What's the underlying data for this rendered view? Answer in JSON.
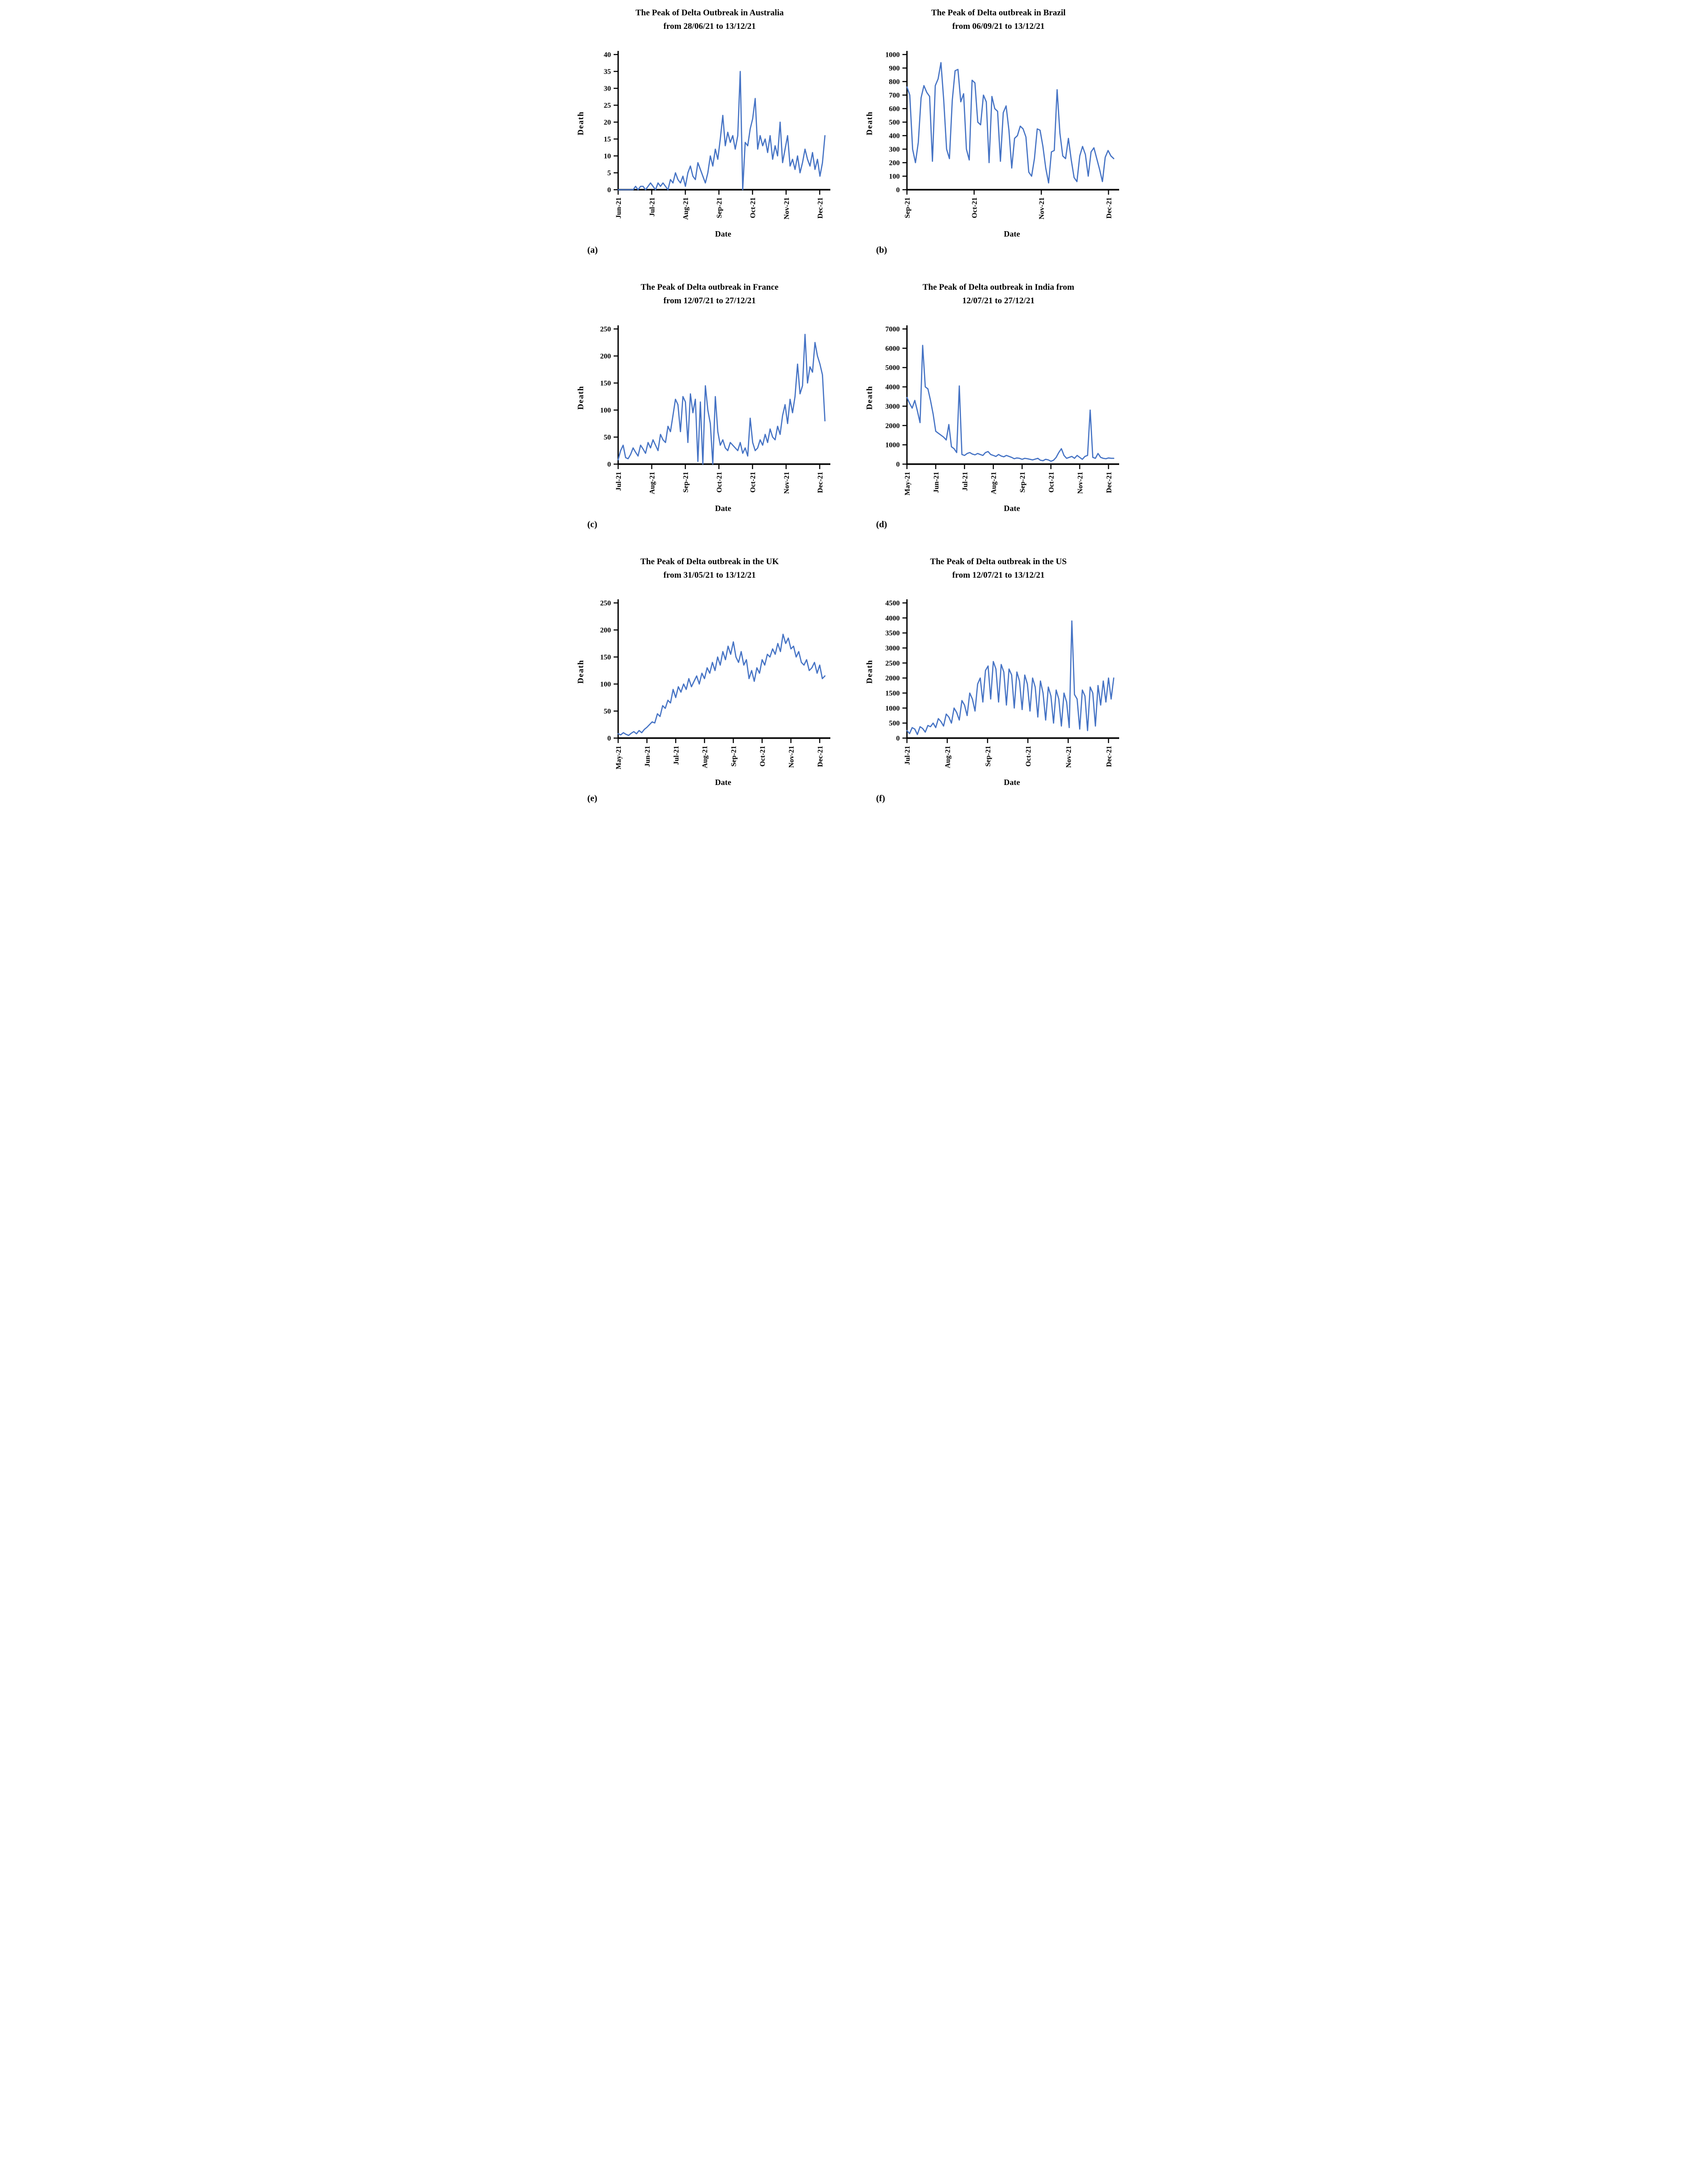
{
  "figure": {
    "description_visible_text_only": "Six line charts of daily Delta-outbreak deaths",
    "line_color": "#4472C4",
    "axis_color": "#000000"
  },
  "chart_data": [
    {
      "id": "australia",
      "caption": "(a)",
      "type": "line",
      "country": "Australia",
      "title": "The Peak of Delta Outbreak in Australia from 28/06/21 to 13/12/21",
      "title_lines": [
        "The Peak of Delta Outbreak in Australia",
        "from 28/06/21 to 13/12/21"
      ],
      "date_range": "28/06/21 to 13/12/21",
      "xlabel": "Date",
      "ylabel": "Death",
      "ylim": [
        0,
        40
      ],
      "yticks": [
        0,
        5,
        10,
        15,
        20,
        25,
        30,
        35,
        40
      ],
      "xticks": [
        "Jun-21",
        "Jul-21",
        "Aug-21",
        "Sep-21",
        "Oct-21",
        "Nov-21",
        "Dec-21"
      ],
      "line_color": "#4472C4",
      "values": [
        0,
        0,
        0,
        0,
        0,
        0,
        0,
        1,
        0,
        1,
        1,
        0,
        1,
        2,
        1,
        0,
        2,
        1,
        2,
        1,
        0,
        3,
        2,
        5,
        3,
        2,
        4,
        1,
        5,
        7,
        4,
        3,
        8,
        6,
        4,
        2,
        5,
        10,
        7,
        12,
        9,
        15,
        22,
        13,
        17,
        14,
        16,
        12,
        16,
        35,
        0,
        14,
        13,
        18,
        21,
        27,
        12,
        16,
        13,
        15,
        11,
        16,
        9,
        13,
        10,
        20,
        8,
        12,
        16,
        7,
        9,
        6,
        10,
        5,
        8,
        12,
        9,
        7,
        11,
        6,
        9,
        4,
        8,
        16
      ]
    },
    {
      "id": "brazil",
      "caption": "(b)",
      "type": "line",
      "country": "Brazil",
      "title": "The Peak of Delta outbreak in Brazil from 06/09/21 to 13/12/21",
      "title_lines": [
        "The Peak of Delta outbreak in Brazil",
        "from 06/09/21 to 13/12/21"
      ],
      "date_range": "06/09/21 to 13/12/21",
      "xlabel": "Date",
      "ylabel": "Death",
      "ylim": [
        0,
        1000
      ],
      "yticks": [
        0,
        100,
        200,
        300,
        400,
        500,
        600,
        700,
        800,
        900,
        1000
      ],
      "xticks": [
        "Sep-21",
        "Oct-21",
        "Nov-21",
        "Dec-21"
      ],
      "line_color": "#4472C4",
      "values": [
        760,
        700,
        300,
        200,
        350,
        680,
        770,
        720,
        690,
        210,
        770,
        820,
        940,
        660,
        300,
        230,
        660,
        880,
        890,
        650,
        710,
        300,
        220,
        810,
        790,
        500,
        480,
        700,
        650,
        200,
        690,
        600,
        580,
        210,
        570,
        620,
        440,
        160,
        380,
        400,
        470,
        450,
        390,
        130,
        100,
        230,
        450,
        440,
        320,
        160,
        50,
        280,
        290,
        740,
        420,
        250,
        230,
        380,
        220,
        90,
        60,
        250,
        320,
        260,
        100,
        280,
        310,
        230,
        150,
        60,
        240,
        290,
        250,
        230
      ]
    },
    {
      "id": "france",
      "caption": "(c)",
      "type": "line",
      "country": "France",
      "title": "The Peak of Delta outbreak in France from 12/07/21 to 27/12/21",
      "title_lines": [
        "The Peak of Delta outbreak in France",
        "from 12/07/21 to 27/12/21"
      ],
      "date_range": "12/07/21 to 27/12/21",
      "xlabel": "Date",
      "ylabel": "Death",
      "ylim": [
        0,
        250
      ],
      "yticks": [
        0,
        50,
        100,
        150,
        200,
        250
      ],
      "xticks": [
        "Jul-21",
        "Aug-21",
        "Sep-21",
        "Oct-21",
        "Oct-21",
        "Nov-21",
        "Dec-21"
      ],
      "line_color": "#4472C4",
      "values": [
        8,
        25,
        35,
        12,
        10,
        18,
        30,
        22,
        15,
        35,
        28,
        20,
        40,
        30,
        45,
        35,
        25,
        55,
        45,
        40,
        70,
        60,
        90,
        120,
        110,
        60,
        125,
        115,
        40,
        130,
        95,
        120,
        5,
        115,
        0,
        145,
        100,
        75,
        0,
        125,
        60,
        35,
        45,
        30,
        25,
        40,
        35,
        30,
        25,
        40,
        20,
        30,
        15,
        85,
        40,
        25,
        30,
        45,
        35,
        55,
        40,
        65,
        50,
        45,
        70,
        55,
        90,
        110,
        75,
        120,
        95,
        125,
        185,
        130,
        145,
        240,
        150,
        180,
        170,
        225,
        200,
        185,
        165,
        80
      ]
    },
    {
      "id": "india",
      "caption": "(d)",
      "type": "line",
      "country": "India",
      "title": "The Peak of Delta outbreak in India from 12/07/21 to 27/12/21",
      "title_lines": [
        "The Peak of Delta outbreak in India from",
        "12/07/21 to 27/12/21"
      ],
      "date_range": "12/07/21 to 27/12/21",
      "xlabel": "Date",
      "ylabel": "Death",
      "ylim": [
        0,
        7000
      ],
      "yticks": [
        0,
        1000,
        2000,
        3000,
        4000,
        5000,
        6000,
        7000
      ],
      "xticks": [
        "May-21",
        "Jun-21",
        "Jul-21",
        "Aug-21",
        "Sep-21",
        "Oct-21",
        "Nov-21",
        "Dec-21"
      ],
      "line_color": "#4472C4",
      "values": [
        3450,
        3150,
        2900,
        3300,
        2750,
        2150,
        6150,
        4000,
        3900,
        3300,
        2600,
        1700,
        1600,
        1500,
        1400,
        1250,
        2050,
        900,
        800,
        600,
        4050,
        500,
        450,
        550,
        600,
        520,
        480,
        550,
        500,
        450,
        600,
        650,
        500,
        450,
        400,
        500,
        420,
        380,
        450,
        400,
        350,
        280,
        320,
        300,
        250,
        300,
        280,
        250,
        220,
        260,
        300,
        200,
        180,
        250,
        220,
        150,
        200,
        350,
        600,
        800,
        450,
        300,
        350,
        400,
        300,
        450,
        350,
        250,
        400,
        450,
        2800,
        350,
        300,
        550,
        350,
        300,
        280,
        320,
        300,
        300
      ]
    },
    {
      "id": "uk",
      "caption": "(e)",
      "type": "line",
      "country": "the UK",
      "title": "The Peak of Delta outbreak in the UK from 31/05/21 to 13/12/21",
      "title_lines": [
        "The Peak of Delta outbreak in the UK",
        "from 31/05/21 to 13/12/21"
      ],
      "date_range": "31/05/21 to 13/12/21",
      "xlabel": "Date",
      "ylabel": "Death",
      "ylim": [
        0,
        250
      ],
      "yticks": [
        0,
        50,
        100,
        150,
        200,
        250
      ],
      "xticks": [
        "May-21",
        "Jun-21",
        "Jul-21",
        "Aug-21",
        "Sep-21",
        "Oct-21",
        "Nov-21",
        "Dec-21"
      ],
      "line_color": "#4472C4",
      "values": [
        8,
        6,
        10,
        7,
        5,
        9,
        12,
        8,
        14,
        10,
        16,
        20,
        25,
        30,
        28,
        45,
        40,
        60,
        55,
        70,
        65,
        90,
        75,
        95,
        85,
        100,
        90,
        110,
        95,
        105,
        115,
        100,
        120,
        110,
        130,
        120,
        140,
        125,
        150,
        135,
        160,
        145,
        170,
        155,
        178,
        150,
        140,
        160,
        135,
        145,
        110,
        125,
        105,
        130,
        120,
        145,
        135,
        155,
        150,
        165,
        155,
        175,
        160,
        192,
        175,
        185,
        165,
        170,
        150,
        160,
        140,
        135,
        145,
        125,
        130,
        140,
        120,
        135,
        110,
        115
      ]
    },
    {
      "id": "us",
      "caption": "(f)",
      "type": "line",
      "country": "the US",
      "title": "The Peak of Delta outbreak in the US from 12/07/21 to 13/12/21",
      "title_lines": [
        "The Peak of Delta outbreak in the US",
        "from 12/07/21 to 13/12/21"
      ],
      "date_range": "12/07/21 to 13/12/21",
      "xlabel": "Date",
      "ylabel": "Death",
      "ylim": [
        0,
        4500
      ],
      "yticks": [
        0,
        500,
        1000,
        1500,
        2000,
        2500,
        3000,
        3500,
        4000,
        4500
      ],
      "xticks": [
        "Jul-21",
        "Aug-21",
        "Sep-21",
        "Oct-21",
        "Nov-21",
        "Dec-21"
      ],
      "line_color": "#4472C4",
      "values": [
        250,
        150,
        350,
        300,
        120,
        380,
        320,
        200,
        420,
        380,
        500,
        350,
        650,
        550,
        400,
        800,
        700,
        500,
        1000,
        850,
        600,
        1250,
        1100,
        750,
        1500,
        1300,
        900,
        1800,
        2000,
        1200,
        2250,
        2400,
        1300,
        2550,
        2300,
        1200,
        2450,
        2200,
        1100,
        2300,
        2100,
        1000,
        2200,
        1900,
        950,
        2100,
        1800,
        900,
        2000,
        1700,
        700,
        1900,
        1500,
        600,
        1700,
        1400,
        500,
        1600,
        1300,
        400,
        1500,
        1200,
        350,
        3900,
        1450,
        1300,
        300,
        1600,
        1400,
        250,
        1700,
        1500,
        400,
        1750,
        1100,
        1900,
        1200,
        2000,
        1300,
        2000
      ]
    }
  ]
}
